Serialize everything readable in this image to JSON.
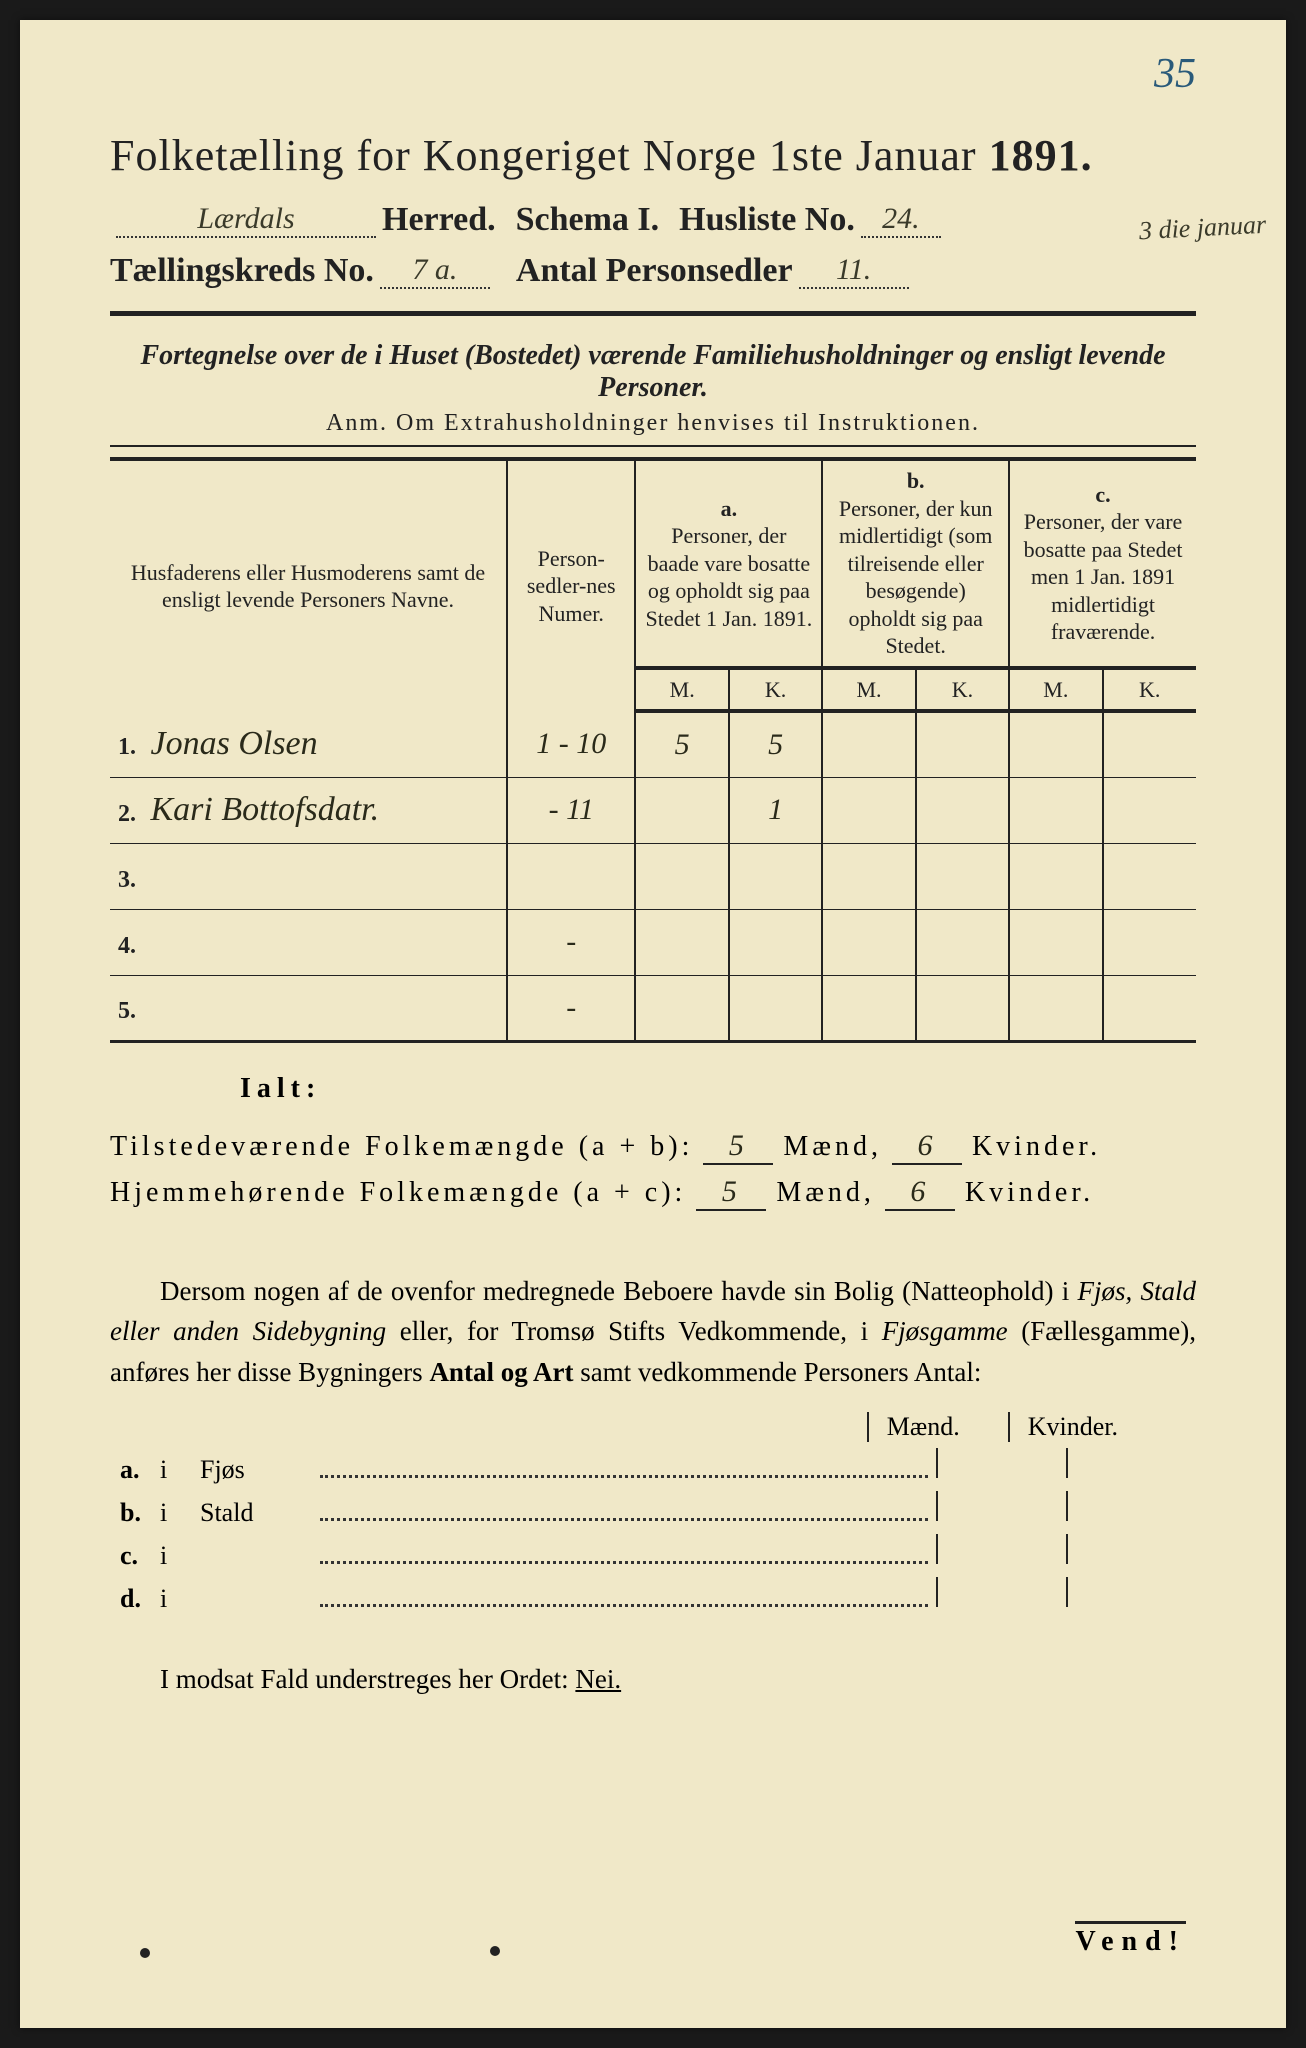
{
  "colors": {
    "paper": "#f0e8c8",
    "ink": "#222222",
    "handwriting": "#2a2a1a",
    "page_number": "#2a5a7a",
    "background": "#1a1a1a"
  },
  "typography": {
    "title_fontsize": 44,
    "line_fontsize": 34,
    "body_fontsize": 27,
    "table_fontsize": 22,
    "hand_fontsize": 34
  },
  "page_number": "35",
  "title": {
    "prefix": "Folketælling for Kongeriget Norge 1ste Januar ",
    "year": "1891."
  },
  "line2": {
    "herred_value": "Lærdals",
    "herred_label": "Herred.",
    "schema_label": "Schema I.",
    "husliste_label": "Husliste No.",
    "husliste_value": "24."
  },
  "margin_note": "3 die januar",
  "line3": {
    "kreds_label": "Tællingskreds No.",
    "kreds_value": "7 a.",
    "antal_label": "Antal Personsedler",
    "antal_value": "11."
  },
  "subtitle": "Fortegnelse over de i Huset (Bostedet) værende Familiehusholdninger og ensligt levende Personer.",
  "anm": "Anm.  Om Extrahusholdninger henvises til Instruktionen.",
  "table": {
    "headers": {
      "name": "Husfaderens eller Husmoderens samt de ensligt levende Personers Navne.",
      "numer": "Person-sedler-nes Numer.",
      "a_letter": "a.",
      "a_text": "Personer, der baade vare bosatte og opholdt sig paa Stedet 1 Jan. 1891.",
      "b_letter": "b.",
      "b_text": "Personer, der kun midlertidigt (som tilreisende eller besøgende) opholdt sig paa Stedet.",
      "c_letter": "c.",
      "c_text": "Personer, der vare bosatte paa Stedet men 1 Jan. 1891 midlertidigt fraværende.",
      "m": "M.",
      "k": "K."
    },
    "rows": [
      {
        "n": "1.",
        "name": "Jonas Olsen",
        "numer": "1 - 10",
        "a_m": "5",
        "a_k": "5",
        "b_m": "",
        "b_k": "",
        "c_m": "",
        "c_k": ""
      },
      {
        "n": "2.",
        "name": "Kari Bottofsdatr.",
        "numer": "- 11",
        "a_m": "",
        "a_k": "1",
        "b_m": "",
        "b_k": "",
        "c_m": "",
        "c_k": ""
      },
      {
        "n": "3.",
        "name": "",
        "numer": "",
        "a_m": "",
        "a_k": "",
        "b_m": "",
        "b_k": "",
        "c_m": "",
        "c_k": ""
      },
      {
        "n": "4.",
        "name": "",
        "numer": "-",
        "a_m": "",
        "a_k": "",
        "b_m": "",
        "b_k": "",
        "c_m": "",
        "c_k": ""
      },
      {
        "n": "5.",
        "name": "",
        "numer": "-",
        "a_m": "",
        "a_k": "",
        "b_m": "",
        "b_k": "",
        "c_m": "",
        "c_k": ""
      }
    ]
  },
  "ialt_label": "Ialt:",
  "totals": {
    "present": {
      "label": "Tilstedeværende Folkemængde (a + b):",
      "maend": "5",
      "maend_label": "Mænd,",
      "kvinder": "6",
      "kvinder_label": "Kvinder."
    },
    "home": {
      "label": "Hjemmehørende Folkemængde (a + c):",
      "maend": "5",
      "maend_label": "Mænd,",
      "kvinder": "6",
      "kvinder_label": "Kvinder."
    }
  },
  "paragraph": {
    "p1": "Dersom nogen af de ovenfor medregnede Beboere havde sin Bolig (Natteophold) i ",
    "it1": "Fjøs, Stald eller anden Sidebygning",
    "p2": " eller, for Tromsø Stifts Vedkommende, i ",
    "it2": "Fjøsgamme",
    "p3": " (Fællesgamme), anføres her disse Bygningers ",
    "bd1": "Antal og Art",
    "p4": " samt vedkommende Personers Antal:"
  },
  "building_headers": {
    "maend": "Mænd.",
    "kvinder": "Kvinder."
  },
  "building_rows": [
    {
      "lbl": "a.",
      "i": "i",
      "type": "Fjøs"
    },
    {
      "lbl": "b.",
      "i": "i",
      "type": "Stald"
    },
    {
      "lbl": "c.",
      "i": "i",
      "type": ""
    },
    {
      "lbl": "d.",
      "i": "i",
      "type": ""
    }
  ],
  "nei_line": {
    "prefix": "I modsat Fald understreges her Ordet: ",
    "word": "Nei."
  },
  "vend": "Vend!"
}
